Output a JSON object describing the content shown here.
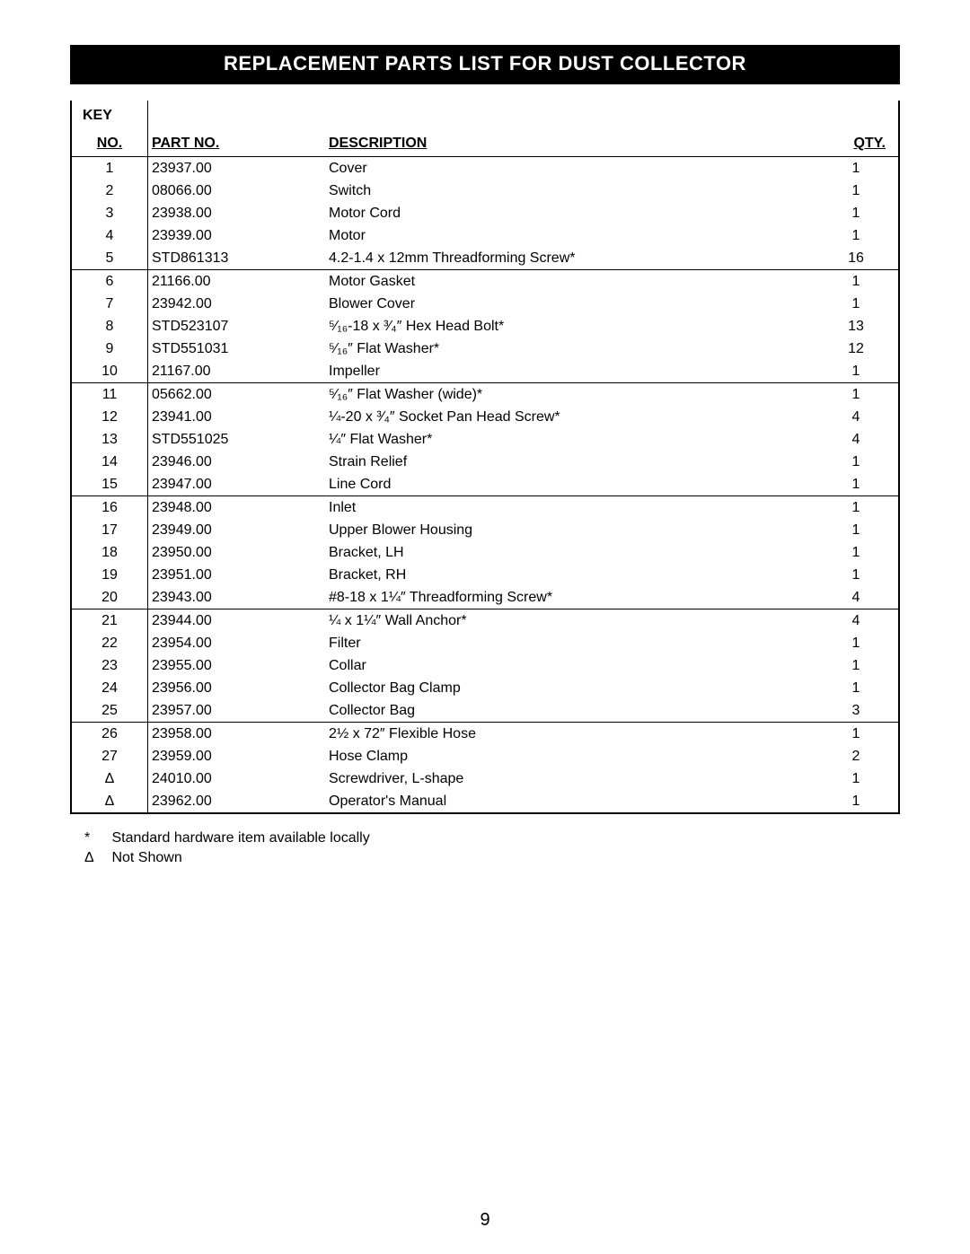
{
  "title": "REPLACEMENT PARTS LIST FOR DUST COLLECTOR",
  "headers": {
    "key_top": "KEY",
    "key_no": "NO.",
    "part_no": "PART NO.",
    "description": "DESCRIPTION",
    "qty": "QTY."
  },
  "groups": [
    {
      "rows": [
        {
          "key": "1",
          "part": "23937.00",
          "desc": "Cover",
          "qty": "1"
        },
        {
          "key": "2",
          "part": "08066.00",
          "desc": "Switch",
          "qty": "1"
        },
        {
          "key": "3",
          "part": "23938.00",
          "desc": "Motor Cord",
          "qty": "1"
        },
        {
          "key": "4",
          "part": "23939.00",
          "desc": "Motor",
          "qty": "1"
        },
        {
          "key": "5",
          "part": "STD861313",
          "desc": "4.2-1.4 x 12mm Threadforming Screw*",
          "qty": "16"
        }
      ]
    },
    {
      "rows": [
        {
          "key": "6",
          "part": "21166.00",
          "desc": "Motor Gasket",
          "qty": "1"
        },
        {
          "key": "7",
          "part": "23942.00",
          "desc": "Blower Cover",
          "qty": "1"
        },
        {
          "key": "8",
          "part": "STD523107",
          "desc": "⁵⁄₁₆-18 x ³⁄₄″ Hex Head Bolt*",
          "qty": "13"
        },
        {
          "key": "9",
          "part": "STD551031",
          "desc": "⁵⁄₁₆″ Flat Washer*",
          "qty": "12"
        },
        {
          "key": "10",
          "part": "21167.00",
          "desc": "Impeller",
          "qty": "1"
        }
      ]
    },
    {
      "rows": [
        {
          "key": "11",
          "part": "05662.00",
          "desc": "⁵⁄₁₆″ Flat Washer (wide)*",
          "qty": "1"
        },
        {
          "key": "12",
          "part": "23941.00",
          "desc": "¼-20 x ³⁄₄″ Socket Pan Head Screw*",
          "qty": "4"
        },
        {
          "key": "13",
          "part": "STD551025",
          "desc": "¼″ Flat Washer*",
          "qty": "4"
        },
        {
          "key": "14",
          "part": "23946.00",
          "desc": "Strain Relief",
          "qty": "1"
        },
        {
          "key": "15",
          "part": "23947.00",
          "desc": "Line Cord",
          "qty": "1"
        }
      ]
    },
    {
      "rows": [
        {
          "key": "16",
          "part": "23948.00",
          "desc": "Inlet",
          "qty": "1"
        },
        {
          "key": "17",
          "part": "23949.00",
          "desc": "Upper Blower Housing",
          "qty": "1"
        },
        {
          "key": "18",
          "part": "23950.00",
          "desc": "Bracket, LH",
          "qty": "1"
        },
        {
          "key": "19",
          "part": "23951.00",
          "desc": "Bracket, RH",
          "qty": "1"
        },
        {
          "key": "20",
          "part": "23943.00",
          "desc": "#8-18 x 1¼″ Threadforming Screw*",
          "qty": "4"
        }
      ]
    },
    {
      "rows": [
        {
          "key": "21",
          "part": "23944.00",
          "desc": "¼ x 1¼″ Wall Anchor*",
          "qty": "4"
        },
        {
          "key": "22",
          "part": "23954.00",
          "desc": "Filter",
          "qty": "1"
        },
        {
          "key": "23",
          "part": "23955.00",
          "desc": "Collar",
          "qty": "1"
        },
        {
          "key": "24",
          "part": "23956.00",
          "desc": "Collector Bag Clamp",
          "qty": "1"
        },
        {
          "key": "25",
          "part": "23957.00",
          "desc": "Collector Bag",
          "qty": "3"
        }
      ]
    },
    {
      "rows": [
        {
          "key": "26",
          "part": "23958.00",
          "desc": "2½ x 72″ Flexible Hose",
          "qty": "1"
        },
        {
          "key": "27",
          "part": "23959.00",
          "desc": "Hose Clamp",
          "qty": "2"
        },
        {
          "key": "Δ",
          "part": "24010.00",
          "desc": "Screwdriver, L-shape",
          "qty": "1"
        },
        {
          "key": "Δ",
          "part": "23962.00",
          "desc": "Operator's Manual",
          "qty": "1"
        }
      ]
    }
  ],
  "footnotes": [
    {
      "sym": "*",
      "text": "Standard hardware item available locally"
    },
    {
      "sym": "Δ",
      "text": "Not Shown"
    }
  ],
  "page_number": "9",
  "colors": {
    "title_bg": "#000000",
    "title_fg": "#ffffff",
    "border": "#000000",
    "page_bg": "#ffffff"
  }
}
